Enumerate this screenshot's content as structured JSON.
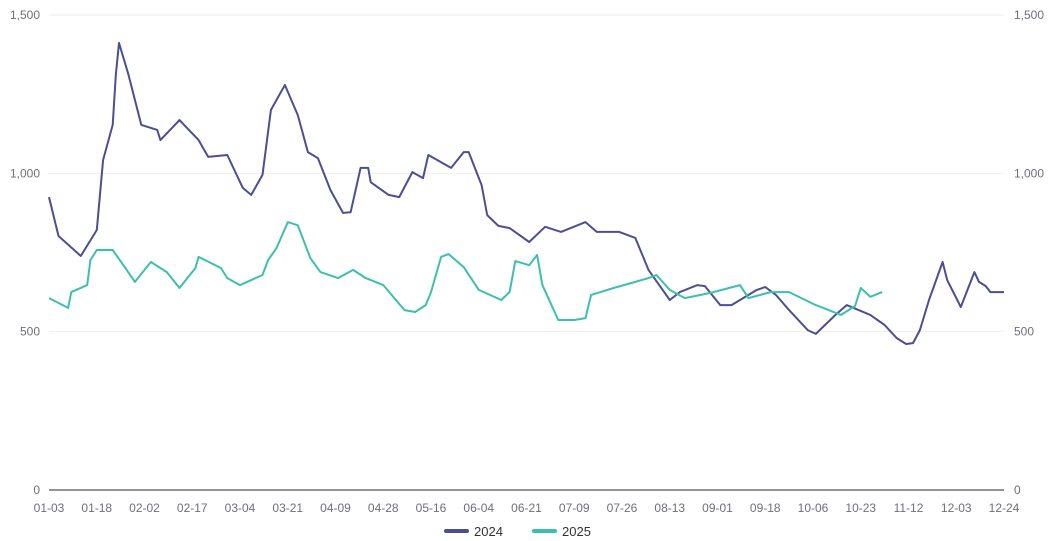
{
  "chart_data": {
    "type": "line",
    "title": "",
    "xlabel": "",
    "ylabel": "",
    "ylim": [
      0,
      1500
    ],
    "yticks": [
      "0",
      "500",
      "1,000",
      "1,500"
    ],
    "ytick_values": [
      0,
      500,
      1000,
      1500
    ],
    "right_axis_mirrored": true,
    "grid": true,
    "legend_position": "bottom",
    "x_tick_labels": [
      "01-03",
      "01-18",
      "02-02",
      "02-17",
      "03-04",
      "03-21",
      "04-09",
      "04-28",
      "05-16",
      "06-04",
      "06-21",
      "07-09",
      "07-26",
      "08-13",
      "09-01",
      "09-18",
      "10-06",
      "10-23",
      "11-12",
      "12-03",
      "12-24"
    ],
    "series": [
      {
        "name": "2024",
        "color": "#4b4f92",
        "points": [
          [
            "01-03",
            925
          ],
          [
            "01-06",
            802
          ],
          [
            "01-13",
            739
          ],
          [
            "01-18",
            821
          ],
          [
            "01-20",
            1042
          ],
          [
            "01-23",
            1153
          ],
          [
            "01-24",
            1310
          ],
          [
            "01-25",
            1412
          ],
          [
            "01-28",
            1310
          ],
          [
            "02-01",
            1153
          ],
          [
            "02-06",
            1137
          ],
          [
            "02-07",
            1105
          ],
          [
            "02-13",
            1168
          ],
          [
            "02-19",
            1105
          ],
          [
            "02-22",
            1052
          ],
          [
            "02-28",
            1058
          ],
          [
            "03-05",
            954
          ],
          [
            "03-08",
            932
          ],
          [
            "03-12",
            995
          ],
          [
            "03-15",
            1200
          ],
          [
            "03-20",
            1279
          ],
          [
            "03-25",
            1184
          ],
          [
            "03-29",
            1067
          ],
          [
            "04-02",
            1048
          ],
          [
            "04-07",
            947
          ],
          [
            "04-12",
            875
          ],
          [
            "04-15",
            877
          ],
          [
            "04-19",
            1017
          ],
          [
            "04-22",
            1017
          ],
          [
            "04-23",
            972
          ],
          [
            "04-30",
            932
          ],
          [
            "05-04",
            925
          ],
          [
            "05-09",
            1004
          ],
          [
            "05-13",
            985
          ],
          [
            "05-15",
            1058
          ],
          [
            "05-24",
            1017
          ],
          [
            "05-29",
            1067
          ],
          [
            "05-31",
            1067
          ],
          [
            "06-05",
            963
          ],
          [
            "06-07",
            868
          ],
          [
            "06-11",
            834
          ],
          [
            "06-15",
            827
          ],
          [
            "06-22",
            783
          ],
          [
            "06-28",
            831
          ],
          [
            "07-04",
            815
          ],
          [
            "07-13",
            846
          ],
          [
            "07-17",
            815
          ],
          [
            "07-25",
            815
          ],
          [
            "07-31",
            796
          ],
          [
            "08-05",
            695
          ],
          [
            "08-13",
            600
          ],
          [
            "08-17",
            625
          ],
          [
            "08-24",
            647
          ],
          [
            "08-27",
            644
          ],
          [
            "09-02",
            584
          ],
          [
            "09-06",
            584
          ],
          [
            "09-15",
            632
          ],
          [
            "09-18",
            641
          ],
          [
            "09-22",
            616
          ],
          [
            "09-27",
            568
          ],
          [
            "10-04",
            505
          ],
          [
            "10-07",
            493
          ],
          [
            "10-14",
            553
          ],
          [
            "10-18",
            584
          ],
          [
            "10-27",
            553
          ],
          [
            "11-02",
            521
          ],
          [
            "11-07",
            480
          ],
          [
            "11-11",
            461
          ],
          [
            "11-14",
            464
          ],
          [
            "11-17",
            505
          ],
          [
            "11-21",
            600
          ],
          [
            "11-27",
            720
          ],
          [
            "11-29",
            663
          ],
          [
            "12-05",
            578
          ],
          [
            "12-11",
            688
          ],
          [
            "12-13",
            657
          ],
          [
            "12-16",
            644
          ],
          [
            "12-18",
            625
          ],
          [
            "12-24",
            625
          ]
        ]
      },
      {
        "name": "2025",
        "color": "#3dbfad",
        "points": [
          [
            "01-03",
            606
          ],
          [
            "01-09",
            575
          ],
          [
            "01-10",
            625
          ],
          [
            "01-15",
            647
          ],
          [
            "01-16",
            726
          ],
          [
            "01-18",
            758
          ],
          [
            "01-23",
            758
          ],
          [
            "01-27",
            701
          ],
          [
            "01-30",
            657
          ],
          [
            "02-04",
            720
          ],
          [
            "02-09",
            688
          ],
          [
            "02-13",
            638
          ],
          [
            "02-18",
            701
          ],
          [
            "02-19",
            736
          ],
          [
            "02-26",
            701
          ],
          [
            "02-28",
            669
          ],
          [
            "03-04",
            647
          ],
          [
            "03-12",
            679
          ],
          [
            "03-14",
            726
          ],
          [
            "03-17",
            764
          ],
          [
            "03-21",
            846
          ],
          [
            "03-25",
            836
          ],
          [
            "03-30",
            732
          ],
          [
            "04-03",
            688
          ],
          [
            "04-10",
            669
          ],
          [
            "04-16",
            695
          ],
          [
            "04-21",
            669
          ],
          [
            "04-28",
            647
          ],
          [
            "05-06",
            568
          ],
          [
            "05-10",
            562
          ],
          [
            "05-14",
            584
          ],
          [
            "05-16",
            625
          ],
          [
            "05-20",
            736
          ],
          [
            "05-23",
            745
          ],
          [
            "05-29",
            704
          ],
          [
            "06-04",
            632
          ],
          [
            "06-12",
            600
          ],
          [
            "06-15",
            625
          ],
          [
            "06-17",
            723
          ],
          [
            "06-22",
            710
          ],
          [
            "06-25",
            742
          ],
          [
            "06-27",
            647
          ],
          [
            "07-03",
            537
          ],
          [
            "07-09",
            537
          ],
          [
            "07-13",
            543
          ],
          [
            "07-15",
            616
          ],
          [
            "07-23",
            638
          ],
          [
            "07-31",
            657
          ],
          [
            "08-05",
            669
          ],
          [
            "08-08",
            679
          ],
          [
            "08-13",
            632
          ],
          [
            "08-19",
            606
          ],
          [
            "08-29",
            622
          ],
          [
            "09-09",
            647
          ],
          [
            "09-12",
            606
          ],
          [
            "09-20",
            625
          ],
          [
            "09-27",
            625
          ],
          [
            "10-07",
            584
          ],
          [
            "10-16",
            553
          ],
          [
            "10-21",
            581
          ],
          [
            "10-23",
            638
          ],
          [
            "10-27",
            610
          ],
          [
            "11-01",
            625
          ]
        ]
      }
    ]
  }
}
